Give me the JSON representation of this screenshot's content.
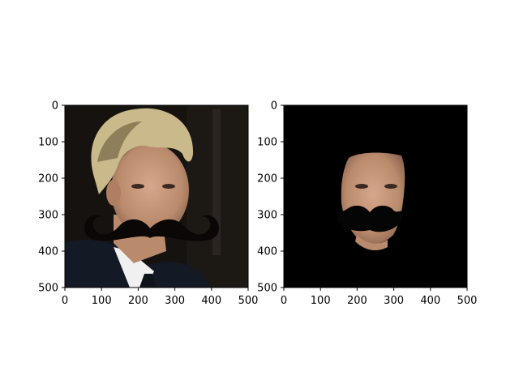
{
  "chart_data": [
    {
      "type": "image",
      "title": "",
      "xlabel": "",
      "ylabel": "",
      "xlim": [
        0,
        500
      ],
      "ylim": [
        500,
        0
      ],
      "xticks": [
        0,
        100,
        200,
        300,
        400,
        500
      ],
      "yticks": [
        0,
        100,
        200,
        300,
        400,
        500
      ],
      "image_content": "portrait of a man with blond hair and dark suit, with a large black cartoon mustache overlaid under the nose",
      "overlay": {
        "shape": "mustache",
        "color": "#0a0706"
      }
    },
    {
      "type": "image",
      "title": "",
      "xlabel": "",
      "ylabel": "",
      "xlim": [
        0,
        500
      ],
      "ylim": [
        500,
        0
      ],
      "xticks": [
        0,
        100,
        200,
        300,
        400,
        500
      ],
      "yticks": [
        0,
        100,
        200,
        300,
        400,
        500
      ],
      "image_content": "masked face region on black background with the same black mustache overlay",
      "overlay": {
        "shape": "mustache",
        "color": "#050505"
      }
    }
  ],
  "colors": {
    "background": "#ffffff",
    "axis": "#000000",
    "mask_background": "#000000",
    "skin": "#c89a7c",
    "hair": "#c9b98b",
    "suit": "#151a26",
    "shirt": "#f2f2f2"
  }
}
